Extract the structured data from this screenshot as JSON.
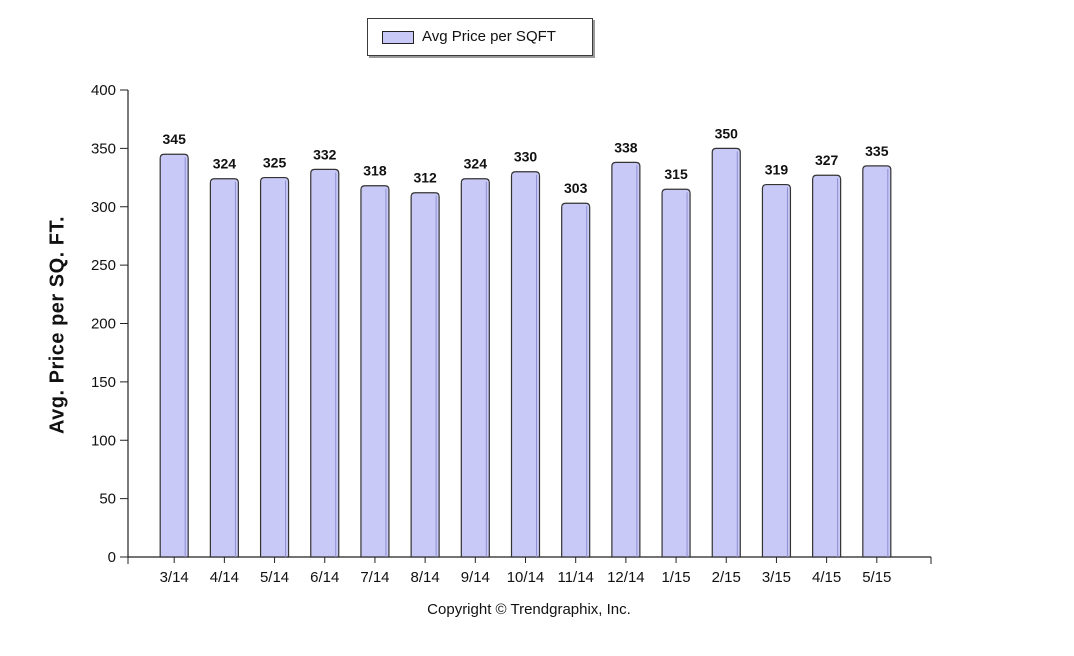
{
  "chart_data": {
    "type": "bar",
    "categories": [
      "3/14",
      "4/14",
      "5/14",
      "6/14",
      "7/14",
      "8/14",
      "9/14",
      "10/14",
      "11/14",
      "12/14",
      "1/15",
      "2/15",
      "3/15",
      "4/15",
      "5/15"
    ],
    "series": [
      {
        "name": "Avg Price per SQFT",
        "values": [
          345,
          324,
          325,
          332,
          318,
          312,
          324,
          330,
          303,
          338,
          315,
          350,
          319,
          327,
          335
        ]
      }
    ],
    "ylabel": "Avg. Price per SQ. FT.",
    "xlabel": "",
    "ylim": [
      0,
      400
    ],
    "yticks": [
      0,
      50,
      100,
      150,
      200,
      250,
      300,
      350,
      400
    ],
    "grid": false,
    "legend_position": "top-center",
    "data_labels": true
  },
  "colors": {
    "bar_fill": "#c9c9f7",
    "bar_stroke": "#333333",
    "axis": "#222222"
  },
  "footer": {
    "copyright": "Copyright © Trendgraphix, Inc."
  }
}
